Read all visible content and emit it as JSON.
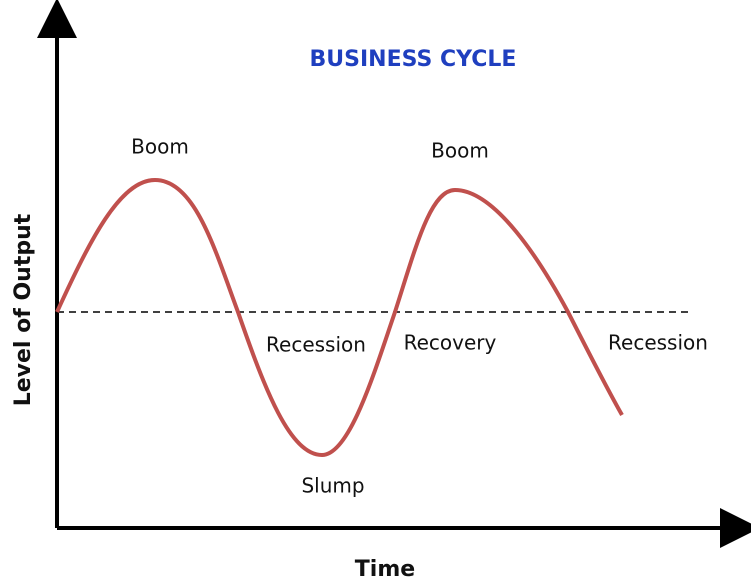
{
  "title": "BUSINESS CYCLE",
  "axes": {
    "y_label": "Level of Output",
    "x_label": "Time"
  },
  "phases": {
    "boom_1": "Boom",
    "recession_1": "Recession",
    "slump": "Slump",
    "recovery": "Recovery",
    "boom_2": "Boom",
    "recession_2": "Recession"
  }
}
